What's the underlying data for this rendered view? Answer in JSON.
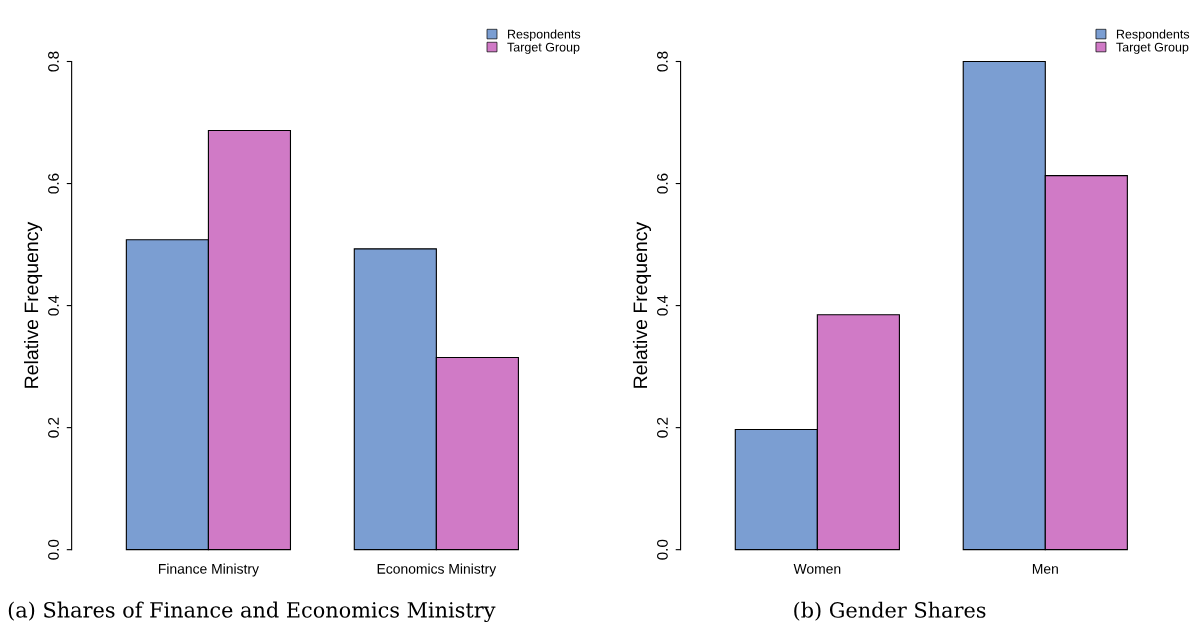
{
  "chart_data": [
    {
      "type": "bar",
      "ylabel": "Relative Frequency",
      "categories": [
        "Finance Ministry",
        "Economics Ministry"
      ],
      "series": [
        {
          "name": "Respondents",
          "color": "#7b9ed2",
          "values": [
            0.508,
            0.493
          ]
        },
        {
          "name": "Target Group",
          "color": "#d07ac6",
          "values": [
            0.687,
            0.315
          ]
        }
      ],
      "ylim": [
        0,
        0.8
      ],
      "yticks": [
        {
          "value": 0,
          "label": "0.0"
        },
        0.2,
        0.4,
        0.6,
        0.8
      ],
      "grid": false,
      "legend": "top right",
      "annotations": [
        "(a) Shares of Finance and Economics Ministry"
      ]
    },
    {
      "type": "bar",
      "ylabel": "Relative Frequency",
      "categories": [
        "Women",
        "Men"
      ],
      "series": [
        {
          "name": "Respondents",
          "color": "#7b9ed2",
          "values": [
            0.197,
            0.8
          ]
        },
        {
          "name": "Target Group",
          "color": "#d07ac6",
          "values": [
            0.385,
            0.613
          ]
        }
      ],
      "ylim": [
        0,
        0.8
      ],
      "yticks": [
        {
          "value": 0,
          "label": "0.0"
        },
        0.2,
        0.4,
        0.6,
        0.8
      ],
      "grid": false,
      "legend": "top right",
      "annotations": [
        "(b) Gender Shares"
      ]
    }
  ]
}
